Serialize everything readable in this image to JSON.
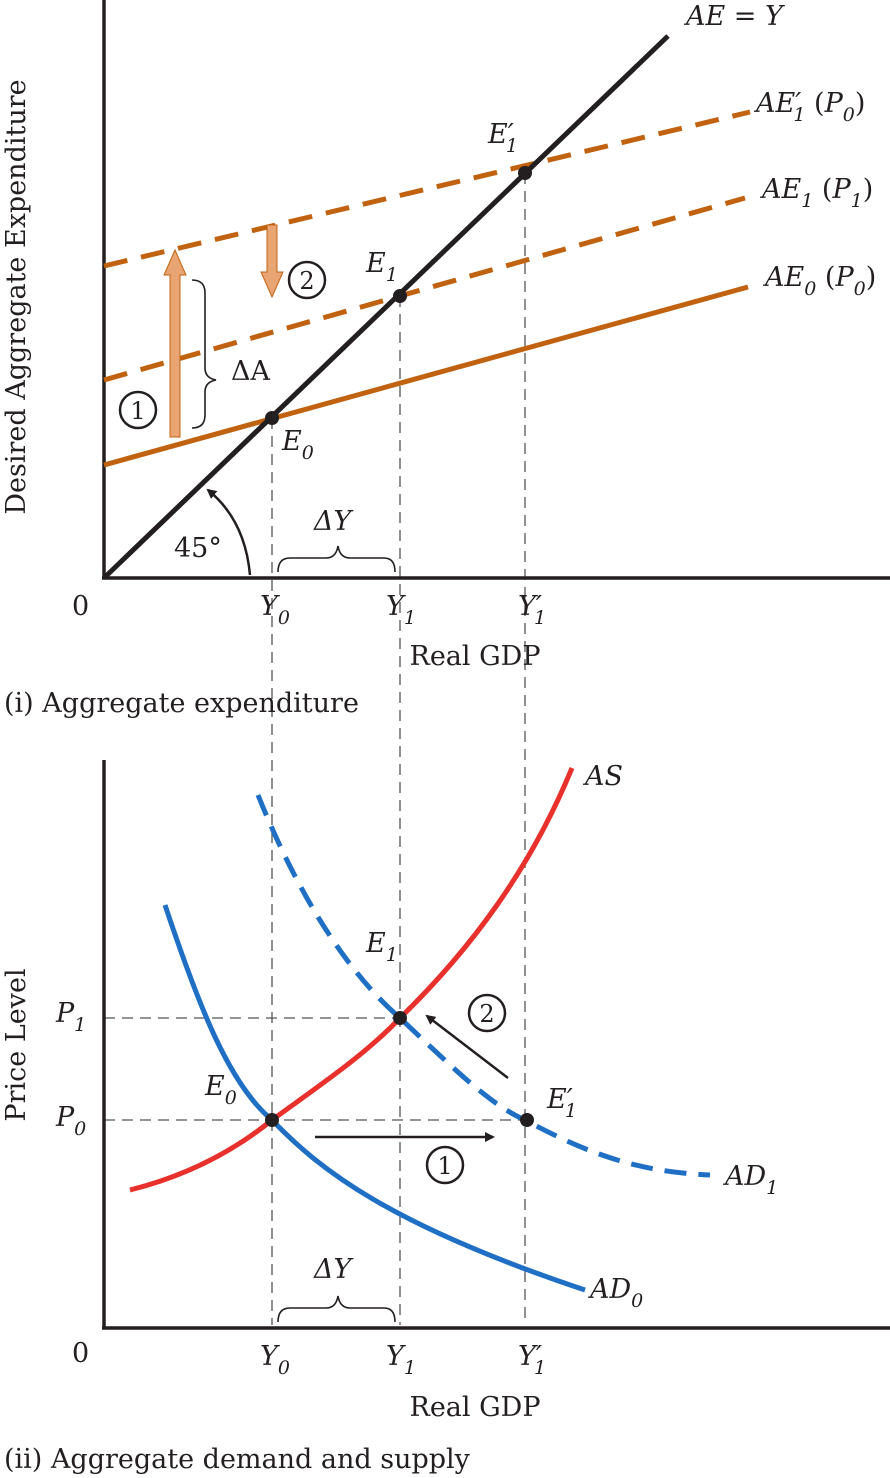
{
  "colors": {
    "axis": "#231f20",
    "ae_lines": "#c0620f",
    "shift_arrows": "#e8a472",
    "as_curve": "#e8312c",
    "ad_curves": "#1f6fc5"
  },
  "panel_top": {
    "caption": "(i) Aggregate expenditure",
    "y_axis_label": "Desired Aggregate Expenditure",
    "x_axis_label": "Real GDP",
    "origin": "0",
    "angle_label": "45°",
    "delta_a": "ΔA",
    "delta_y": "ΔY",
    "step1": "1",
    "step2": "2",
    "lines": {
      "ae_y": "AE = Y",
      "ae1_prime": {
        "name": "AE",
        "prime": "′",
        "sub": "1",
        "p": "P",
        "psub": "0"
      },
      "ae1": {
        "name": "AE",
        "sub": "1",
        "p": "P",
        "psub": "1"
      },
      "ae0": {
        "name": "AE",
        "sub": "0",
        "p": "P",
        "psub": "0"
      }
    },
    "points": {
      "e0": {
        "name": "E",
        "sub": "0"
      },
      "e1": {
        "name": "E",
        "sub": "1"
      },
      "e1p": {
        "name": "E",
        "prime": "′",
        "sub": "1"
      }
    },
    "ticks": {
      "y0": {
        "name": "Y",
        "sub": "0"
      },
      "y1": {
        "name": "Y",
        "sub": "1"
      },
      "y1p": {
        "name": "Y",
        "prime": "′",
        "sub": "1"
      }
    }
  },
  "panel_bottom": {
    "caption": "(ii) Aggregate demand and supply",
    "y_axis_label": "Price Level",
    "x_axis_label": "Real GDP",
    "origin": "0",
    "delta_y": "ΔY",
    "step1": "1",
    "step2": "2",
    "curves": {
      "as": "AS",
      "ad0": {
        "name": "AD",
        "sub": "0"
      },
      "ad1": {
        "name": "AD",
        "sub": "1"
      }
    },
    "price_ticks": {
      "p1": {
        "name": "P",
        "sub": "1"
      },
      "p0": {
        "name": "P",
        "sub": "0"
      }
    },
    "points": {
      "e0": {
        "name": "E",
        "sub": "0"
      },
      "e1": {
        "name": "E",
        "sub": "1"
      },
      "e1p": {
        "name": "E",
        "prime": "′",
        "sub": "1"
      }
    },
    "ticks": {
      "y0": {
        "name": "Y",
        "sub": "0"
      },
      "y1": {
        "name": "Y",
        "sub": "1"
      },
      "y1p": {
        "name": "Y",
        "prime": "′",
        "sub": "1"
      }
    }
  }
}
